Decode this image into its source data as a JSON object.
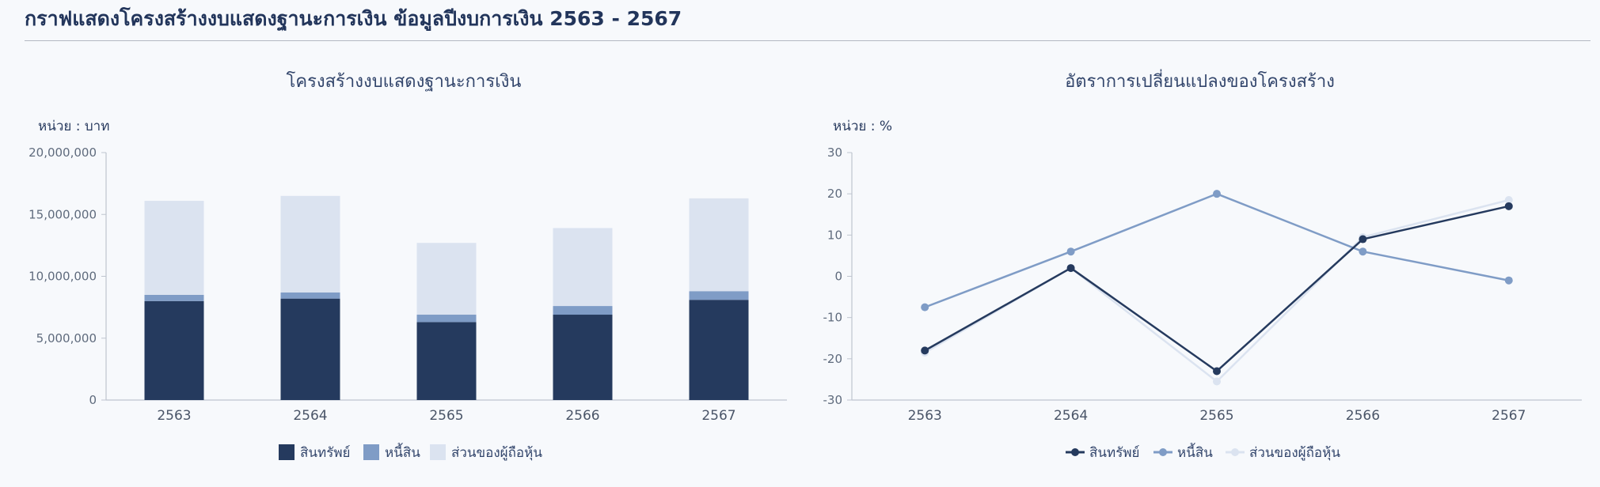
{
  "page_title": "กราฟแสดงโครงสร้างงบแสดงฐานะการเงิน ข้อมูลปีงบการเงิน 2563 - 2567",
  "colors": {
    "assets": "#253a5e",
    "liabilities": "#7f9cc6",
    "equity": "#dbe3f0",
    "axis": "#bfc5cf",
    "tick_text": "#5f6b7d"
  },
  "chart_data": [
    {
      "type": "bar",
      "stacked": true,
      "title": "โครงสร้างงบแสดงฐานะการเงิน",
      "unit_label": "หน่วย : บาท",
      "categories": [
        "2563",
        "2564",
        "2565",
        "2566",
        "2567"
      ],
      "series": [
        {
          "name": "สินทรัพย์",
          "color": "#253a5e",
          "values": [
            8000000,
            8200000,
            6300000,
            6900000,
            8100000
          ]
        },
        {
          "name": "หนี้สิน",
          "color": "#7f9cc6",
          "values": [
            500000,
            500000,
            600000,
            700000,
            700000
          ]
        },
        {
          "name": "ส่วนของผู้ถือหุ้น",
          "color": "#dbe3f0",
          "values": [
            7600000,
            7800000,
            5800000,
            6300000,
            7500000
          ]
        }
      ],
      "ylim": [
        0,
        20000000
      ],
      "yticks": [
        0,
        5000000,
        10000000,
        15000000,
        20000000
      ],
      "ytick_labels": [
        "0",
        "5,000,000",
        "10,000,000",
        "15,000,000",
        "20,000,000"
      ],
      "legend_position": "bottom-center",
      "grid": false
    },
    {
      "type": "line",
      "title": "อัตราการเปลี่ยนแปลงของโครงสร้าง",
      "unit_label": "หน่วย : %",
      "categories": [
        "2563",
        "2564",
        "2565",
        "2566",
        "2567"
      ],
      "series": [
        {
          "name": "สินทรัพย์",
          "color": "#253a5e",
          "values": [
            -18,
            2,
            -23,
            9,
            17
          ]
        },
        {
          "name": "หนี้สิน",
          "color": "#7f9cc6",
          "values": [
            -7.5,
            6,
            20,
            6,
            -1
          ]
        },
        {
          "name": "ส่วนของผู้ถือหุ้น",
          "color": "#dbe3f0",
          "values": [
            -18.5,
            2,
            -25.5,
            9.5,
            18.5
          ]
        }
      ],
      "ylim": [
        -30,
        30
      ],
      "yticks": [
        -30,
        -20,
        -10,
        0,
        10,
        20,
        30
      ],
      "ytick_labels": [
        "-30",
        "-20",
        "-10",
        "0",
        "10",
        "20",
        "30"
      ],
      "legend_position": "bottom-center",
      "grid": false
    }
  ]
}
